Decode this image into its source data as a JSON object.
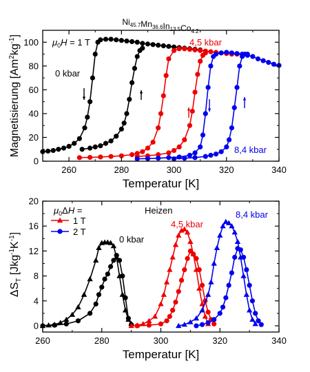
{
  "chart_data": [
    {
      "type": "line",
      "title": {
        "base": "Ni",
        "parts": [
          {
            "el": "Ni",
            "sub": "45.7"
          },
          {
            "el": "Mn",
            "sub": "36.6"
          },
          {
            "el": "In",
            "sub": "13.5"
          },
          {
            "el": "Co",
            "sub": "4.2"
          }
        ]
      },
      "xlabel": "Temperatur [K]",
      "ylabel": {
        "main": "Magnetisierung [Am",
        "sup1": "2",
        "mid": "kg",
        "sup2": "-1",
        "end": "]"
      },
      "xlim": [
        250,
        340
      ],
      "ylim": [
        0,
        110
      ],
      "xticks": [
        260,
        280,
        300,
        320,
        340
      ],
      "yticks": [
        0,
        20,
        40,
        60,
        80,
        100
      ],
      "field_label": "μ0H = 1 T",
      "annotations": [
        "0 kbar",
        "4,5 kbar",
        "8,4 kbar"
      ],
      "series": [
        {
          "color": "#000000",
          "marker": "circle",
          "x": [
            250,
            252,
            254,
            256,
            258,
            260,
            262,
            264,
            266,
            267,
            268,
            269,
            270,
            271,
            272,
            274,
            276,
            278,
            280,
            282,
            284,
            286,
            288,
            290,
            292,
            294,
            296,
            298,
            300,
            302,
            304,
            306,
            308,
            310
          ],
          "y": [
            8,
            8.5,
            9,
            10,
            11,
            12.5,
            15,
            19,
            28,
            37,
            50,
            70,
            90,
            100,
            102,
            102.5,
            102.5,
            102,
            101.5,
            101,
            100.5,
            100,
            99,
            98.5,
            98,
            97.5,
            97,
            96.5,
            96,
            95.5,
            95,
            94.5,
            94,
            93.5
          ]
        },
        {
          "color": "#000000",
          "marker": "circle",
          "x": [
            265,
            268,
            270,
            272,
            274,
            276,
            278,
            280,
            281,
            282,
            283,
            284,
            285,
            286,
            287,
            288
          ],
          "y": [
            10,
            11,
            12,
            13,
            15,
            17,
            21,
            27,
            32,
            40,
            52,
            66,
            78,
            88,
            93,
            95
          ]
        },
        {
          "color": "#ee0000",
          "marker": "circle",
          "x": [
            264,
            268,
            272,
            276,
            280,
            284,
            286,
            288,
            290,
            292,
            294,
            295,
            296,
            297,
            298,
            300,
            302,
            304,
            306,
            308,
            310,
            312,
            314,
            316,
            318,
            320,
            322,
            324,
            326
          ],
          "y": [
            3,
            3.2,
            3.5,
            4,
            4.5,
            5.5,
            6.5,
            8,
            11,
            16,
            28,
            40,
            55,
            72,
            86,
            93,
            94.5,
            94.5,
            94,
            93.5,
            93,
            92.5,
            92,
            91.5,
            91,
            90.5,
            90,
            90,
            89.5
          ]
        },
        {
          "color": "#ee0000",
          "marker": "circle",
          "x": [
            286,
            290,
            294,
            298,
            300,
            302,
            304,
            306,
            307,
            308,
            309,
            310,
            311,
            312
          ],
          "y": [
            4,
            4.5,
            5.5,
            7,
            9,
            12,
            18,
            30,
            42,
            58,
            73,
            84,
            89,
            91
          ]
        },
        {
          "color": "#0000ee",
          "marker": "circle",
          "x": [
            286,
            290,
            294,
            298,
            302,
            306,
            308,
            310,
            311,
            312,
            313,
            314,
            315,
            316,
            318,
            320,
            322,
            324,
            326,
            328,
            330,
            332,
            334,
            336,
            338,
            340
          ],
          "y": [
            2,
            2.2,
            2.5,
            3,
            3.5,
            5,
            7,
            12,
            22,
            40,
            62,
            80,
            88,
            90,
            91,
            91.5,
            91,
            90.5,
            90,
            89,
            88,
            86,
            84.5,
            83,
            81.5,
            80.5
          ]
        },
        {
          "color": "#0000ee",
          "marker": "circle",
          "x": [
            300,
            304,
            308,
            312,
            314,
            316,
            318,
            320,
            321,
            322,
            323,
            324,
            325,
            326,
            327,
            328
          ],
          "y": [
            2,
            2.5,
            3,
            4,
            5,
            6,
            8,
            12,
            18,
            28,
            45,
            62,
            80,
            88,
            90,
            90
          ]
        }
      ]
    },
    {
      "type": "line",
      "xlabel": "Temperatur [K]",
      "ylabel": {
        "main": "ΔS",
        "sub": "T",
        "rest": " [Jkg",
        "sup": "-1",
        "rest2": "K",
        "sup2": "-1",
        "end": "]"
      },
      "xlim": [
        260,
        340
      ],
      "ylim": [
        -1,
        20
      ],
      "xticks": [
        260,
        280,
        300,
        320,
        340
      ],
      "yticks": [
        0,
        4,
        8,
        12,
        16,
        20
      ],
      "legend_title": "μ0ΔH =",
      "legend": [
        {
          "label": "1 T",
          "marker": "triangle"
        },
        {
          "label": "2 T",
          "marker": "circle"
        }
      ],
      "heizen": "Heizen",
      "annotations": [
        "0 kbar",
        "4,5 kbar",
        "8,4 kbar"
      ],
      "series": [
        {
          "name": "1 T",
          "color": "#000000",
          "marker": "triangle",
          "x": [
            260,
            262,
            264,
            266,
            268,
            270,
            272,
            274,
            276,
            278,
            279,
            280,
            281,
            282,
            283,
            284,
            285,
            286,
            287,
            288,
            289,
            290
          ],
          "y": [
            0,
            0.1,
            0.2,
            0.5,
            1,
            1.8,
            3,
            5,
            7.5,
            10.5,
            12.5,
            13.3,
            13.4,
            13.4,
            13.3,
            12.8,
            11,
            8,
            5,
            2.5,
            1,
            0.3
          ]
        },
        {
          "name": "2 T",
          "color": "#000000",
          "marker": "circle",
          "x": [
            260,
            264,
            268,
            272,
            276,
            278,
            279,
            280,
            281,
            282,
            283,
            284,
            285,
            286,
            287,
            288,
            289,
            290
          ],
          "y": [
            0,
            0.1,
            0.3,
            0.8,
            2,
            3.5,
            5,
            6.2,
            7.5,
            8.3,
            9.5,
            10.5,
            11.3,
            10.5,
            8,
            4.5,
            1.2,
            0.2
          ]
        },
        {
          "name": "1 T",
          "color": "#ee0000",
          "marker": "triangle",
          "x": [
            290,
            292,
            294,
            296,
            298,
            300,
            301,
            302,
            303,
            304,
            305,
            306,
            307,
            308,
            309,
            310,
            311,
            312,
            313,
            314,
            315,
            316
          ],
          "y": [
            0,
            0.1,
            0.3,
            0.8,
            1.5,
            3.5,
            5,
            7,
            9,
            11,
            13,
            14.5,
            15.3,
            15.5,
            15,
            13.5,
            11.5,
            9,
            6,
            3.5,
            1.5,
            0.3
          ]
        },
        {
          "name": "2 T",
          "color": "#ee0000",
          "marker": "circle",
          "x": [
            292,
            296,
            300,
            302,
            303,
            304,
            305,
            306,
            307,
            308,
            309,
            310,
            311,
            312,
            313,
            314,
            315,
            316,
            317,
            318
          ],
          "y": [
            0,
            0.1,
            0.3,
            0.8,
            1.5,
            2.5,
            3.8,
            5.5,
            7.3,
            9,
            10.8,
            12,
            11.5,
            10.8,
            9,
            6.5,
            4,
            2.2,
            1,
            0.3
          ]
        },
        {
          "name": "1 T",
          "color": "#0000ee",
          "marker": "triangle",
          "x": [
            306,
            308,
            310,
            312,
            314,
            316,
            317,
            318,
            319,
            320,
            321,
            322,
            323,
            324,
            325,
            326,
            327,
            328,
            329,
            330,
            331,
            332
          ],
          "y": [
            0,
            0.2,
            0.6,
            1.2,
            2.5,
            5,
            7,
            10,
            12.5,
            14.5,
            16,
            16.7,
            16.5,
            16,
            15,
            13.5,
            11,
            8,
            5,
            2.5,
            1,
            0.3
          ]
        },
        {
          "name": "2 T",
          "color": "#0000ee",
          "marker": "circle",
          "x": [
            312,
            314,
            316,
            318,
            320,
            321,
            322,
            323,
            324,
            325,
            326,
            327,
            328,
            329,
            330,
            331,
            332,
            333,
            334
          ],
          "y": [
            0,
            0.2,
            0.5,
            1,
            2,
            3,
            4.5,
            6.5,
            8.5,
            11,
            12.4,
            12.2,
            11,
            9,
            6.5,
            4,
            2,
            0.8,
            0.2
          ]
        }
      ]
    }
  ]
}
